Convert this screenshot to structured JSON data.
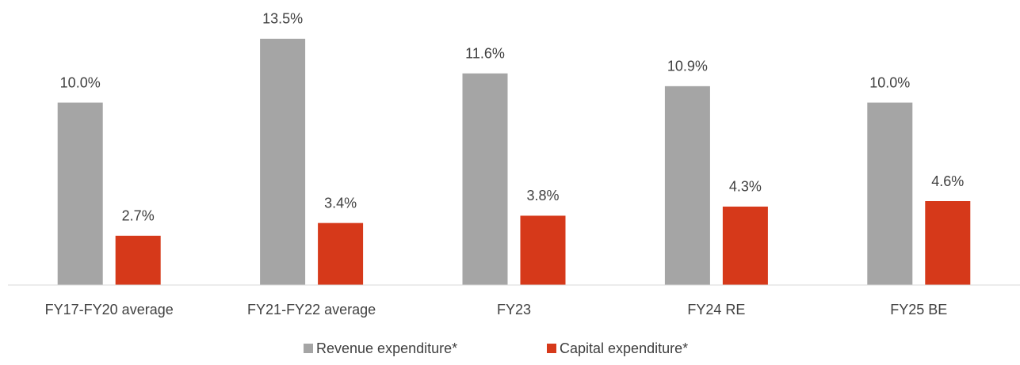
{
  "chart_data": {
    "type": "bar",
    "categories": [
      "FY17-FY20 average",
      "FY21-FY22 average",
      "FY23",
      "FY24 RE",
      "FY25 BE"
    ],
    "series": [
      {
        "name": "Revenue expenditure*",
        "color": "#a5a5a5",
        "values": [
          10.0,
          13.5,
          11.6,
          10.9,
          10.0
        ],
        "value_labels": [
          "10.0%",
          "13.5%",
          "11.6%",
          "10.9%",
          "10.0%"
        ]
      },
      {
        "name": "Capital expenditure*",
        "color": "#d6391a",
        "values": [
          2.7,
          3.4,
          3.8,
          4.3,
          4.6
        ],
        "value_labels": [
          "2.7%",
          "3.4%",
          "3.8%",
          "4.3%",
          "4.6%"
        ]
      }
    ],
    "ylim": [
      0,
      14
    ],
    "legend": "bottom"
  }
}
